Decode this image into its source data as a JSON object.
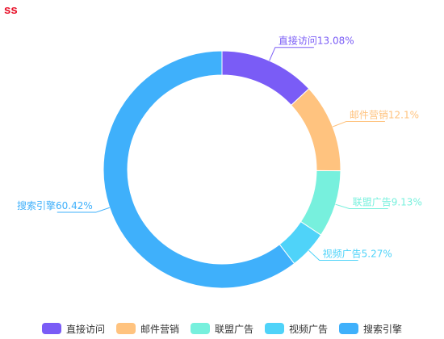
{
  "title": "ss",
  "chart_data": {
    "type": "pie",
    "variant": "donut",
    "title": "ss",
    "label_format": "name+percent",
    "legend_position": "bottom",
    "slices": [
      {
        "name": "直接访问",
        "percent": 13.08,
        "label": "直接访问13.08%",
        "color": "#7a5cf6"
      },
      {
        "name": "邮件营销",
        "percent": 12.1,
        "label": "邮件营销12.1%",
        "color": "#ffc37f"
      },
      {
        "name": "联盟广告",
        "percent": 9.13,
        "label": "联盟广告9.13%",
        "color": "#77f0dd"
      },
      {
        "name": "视频广告",
        "percent": 5.27,
        "label": "视频广告5.27%",
        "color": "#4fd3f9"
      },
      {
        "name": "搜索引擎",
        "percent": 60.42,
        "label": "搜索引擎60.42%",
        "color": "#3fb0fb"
      }
    ]
  }
}
